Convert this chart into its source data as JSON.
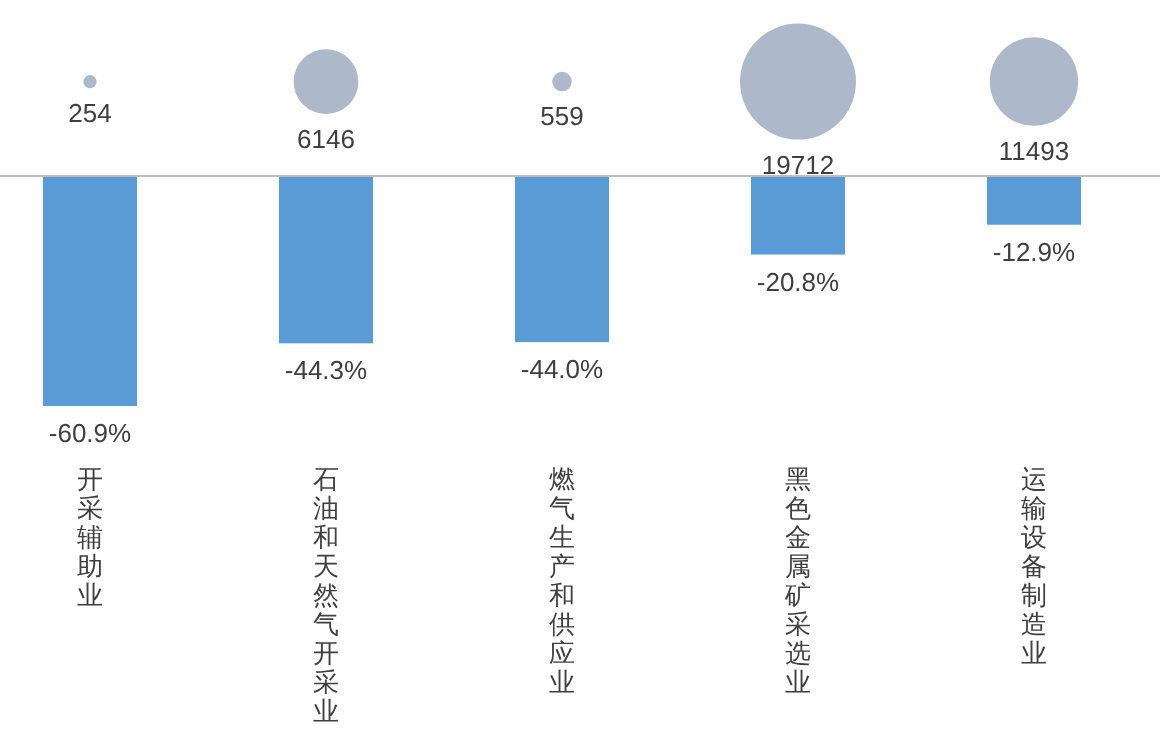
{
  "chart_data": {
    "type": "bar",
    "categories": [
      "开采辅助业",
      "石油和天然气开采业",
      "燃气生产和供应业",
      "黑色金属矿采选业",
      "运输设备制造业"
    ],
    "series": [
      {
        "color": "#5b9bd5",
        "values": [
          -60.9,
          -44.3,
          -44.0,
          -20.8,
          -12.9
        ],
        "value_labels": [
          "-60.9%",
          "-44.3%",
          "-44.0%",
          "-20.8%",
          "-12.9%"
        ]
      },
      {
        "type": "bubble",
        "color": "#adb9ca",
        "values": [
          25,
          25,
          25,
          25,
          25
        ],
        "sizes": [
          254,
          6146,
          559,
          19712,
          11493
        ],
        "value_labels": [
          "254",
          "6146",
          "559",
          "19712",
          "11493"
        ]
      }
    ]
  }
}
